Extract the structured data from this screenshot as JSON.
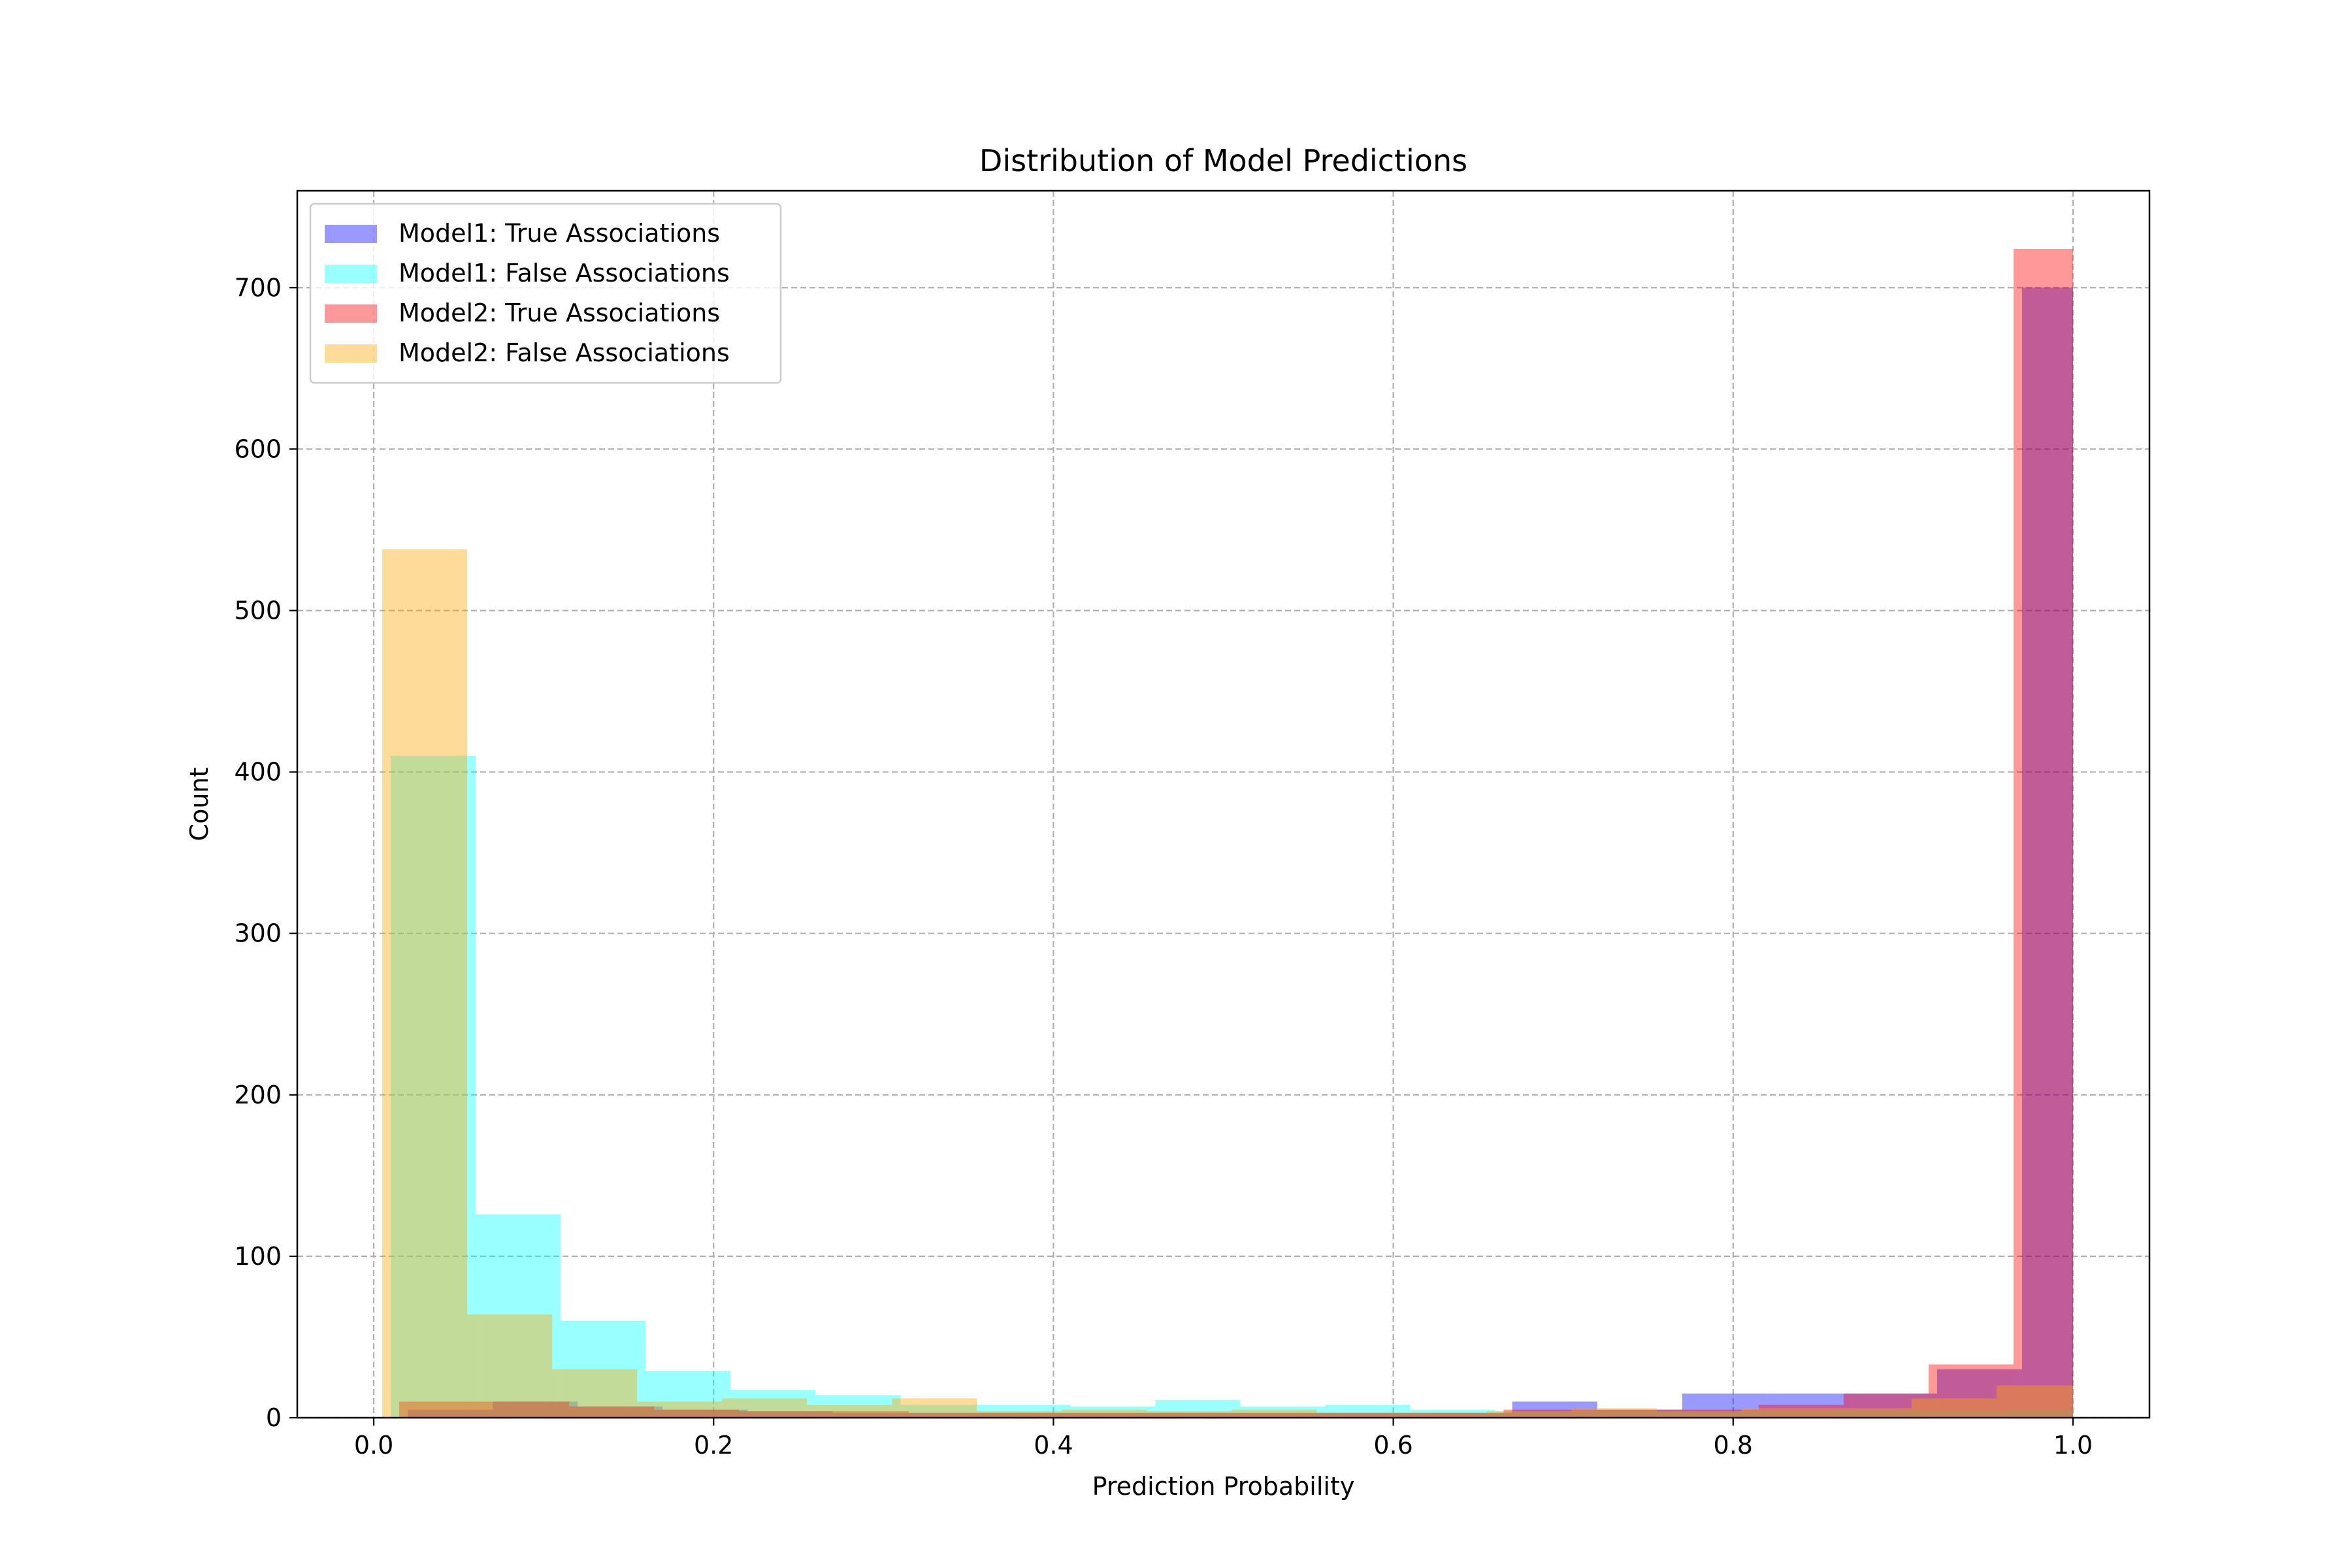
{
  "chart_data": {
    "type": "bar",
    "title": "Distribution of Model Predictions",
    "xlabel": "Prediction Probability",
    "ylabel": "Count",
    "xlim": [
      -0.045,
      1.045
    ],
    "ylim": [
      0,
      760
    ],
    "xticks": [
      0.0,
      0.2,
      0.4,
      0.6,
      0.8,
      1.0
    ],
    "xtick_labels": [
      "0.0",
      "0.2",
      "0.4",
      "0.6",
      "0.8",
      "1.0"
    ],
    "yticks": [
      0,
      100,
      200,
      300,
      400,
      500,
      600,
      700
    ],
    "ytick_labels": [
      "0",
      "100",
      "200",
      "300",
      "400",
      "500",
      "600",
      "700"
    ],
    "grid": true,
    "legend_position": "top-left",
    "series": [
      {
        "name": "Model1: True Associations",
        "color": "#0000ff",
        "alpha": 0.4,
        "bin_edges": [
          0.02,
          0.07,
          0.12,
          0.17,
          0.22,
          0.27,
          0.32,
          0.37,
          0.42,
          0.47,
          0.52,
          0.57,
          0.62,
          0.67,
          0.72,
          0.77,
          0.82,
          0.87,
          0.92,
          0.97,
          1.0
        ],
        "counts": [
          5,
          10,
          7,
          5,
          4,
          3,
          3,
          3,
          3,
          3,
          3,
          3,
          3,
          10,
          5,
          15,
          15,
          15,
          30,
          700
        ]
      },
      {
        "name": "Model1: False Associations",
        "color": "#00ffff",
        "alpha": 0.4,
        "bin_edges": [
          0.01,
          0.06,
          0.11,
          0.16,
          0.21,
          0.26,
          0.31,
          0.36,
          0.41,
          0.46,
          0.51,
          0.56,
          0.61,
          0.66,
          0.71,
          0.76,
          0.81,
          0.86,
          0.91,
          0.96,
          1.0
        ],
        "counts": [
          410,
          126,
          60,
          29,
          17,
          14,
          8,
          8,
          7,
          11,
          7,
          8,
          5,
          4,
          4,
          4,
          4,
          5,
          4,
          5
        ]
      },
      {
        "name": "Model2: True Associations",
        "color": "#ff0000",
        "alpha": 0.4,
        "bin_edges": [
          0.015,
          0.065,
          0.115,
          0.165,
          0.215,
          0.265,
          0.315,
          0.365,
          0.415,
          0.465,
          0.515,
          0.565,
          0.615,
          0.665,
          0.715,
          0.765,
          0.815,
          0.865,
          0.915,
          0.965,
          1.0
        ],
        "counts": [
          10,
          10,
          7,
          5,
          4,
          4,
          3,
          3,
          3,
          3,
          3,
          3,
          3,
          5,
          5,
          5,
          8,
          15,
          33,
          724
        ]
      },
      {
        "name": "Model2: False Associations",
        "color": "#ffa500",
        "alpha": 0.4,
        "bin_edges": [
          0.005,
          0.055,
          0.105,
          0.155,
          0.205,
          0.255,
          0.305,
          0.355,
          0.405,
          0.455,
          0.505,
          0.555,
          0.605,
          0.655,
          0.705,
          0.755,
          0.805,
          0.855,
          0.905,
          0.955,
          1.0
        ],
        "counts": [
          538,
          64,
          30,
          10,
          12,
          8,
          12,
          4,
          5,
          4,
          5,
          3,
          3,
          4,
          6,
          4,
          6,
          6,
          12,
          20
        ]
      }
    ]
  }
}
